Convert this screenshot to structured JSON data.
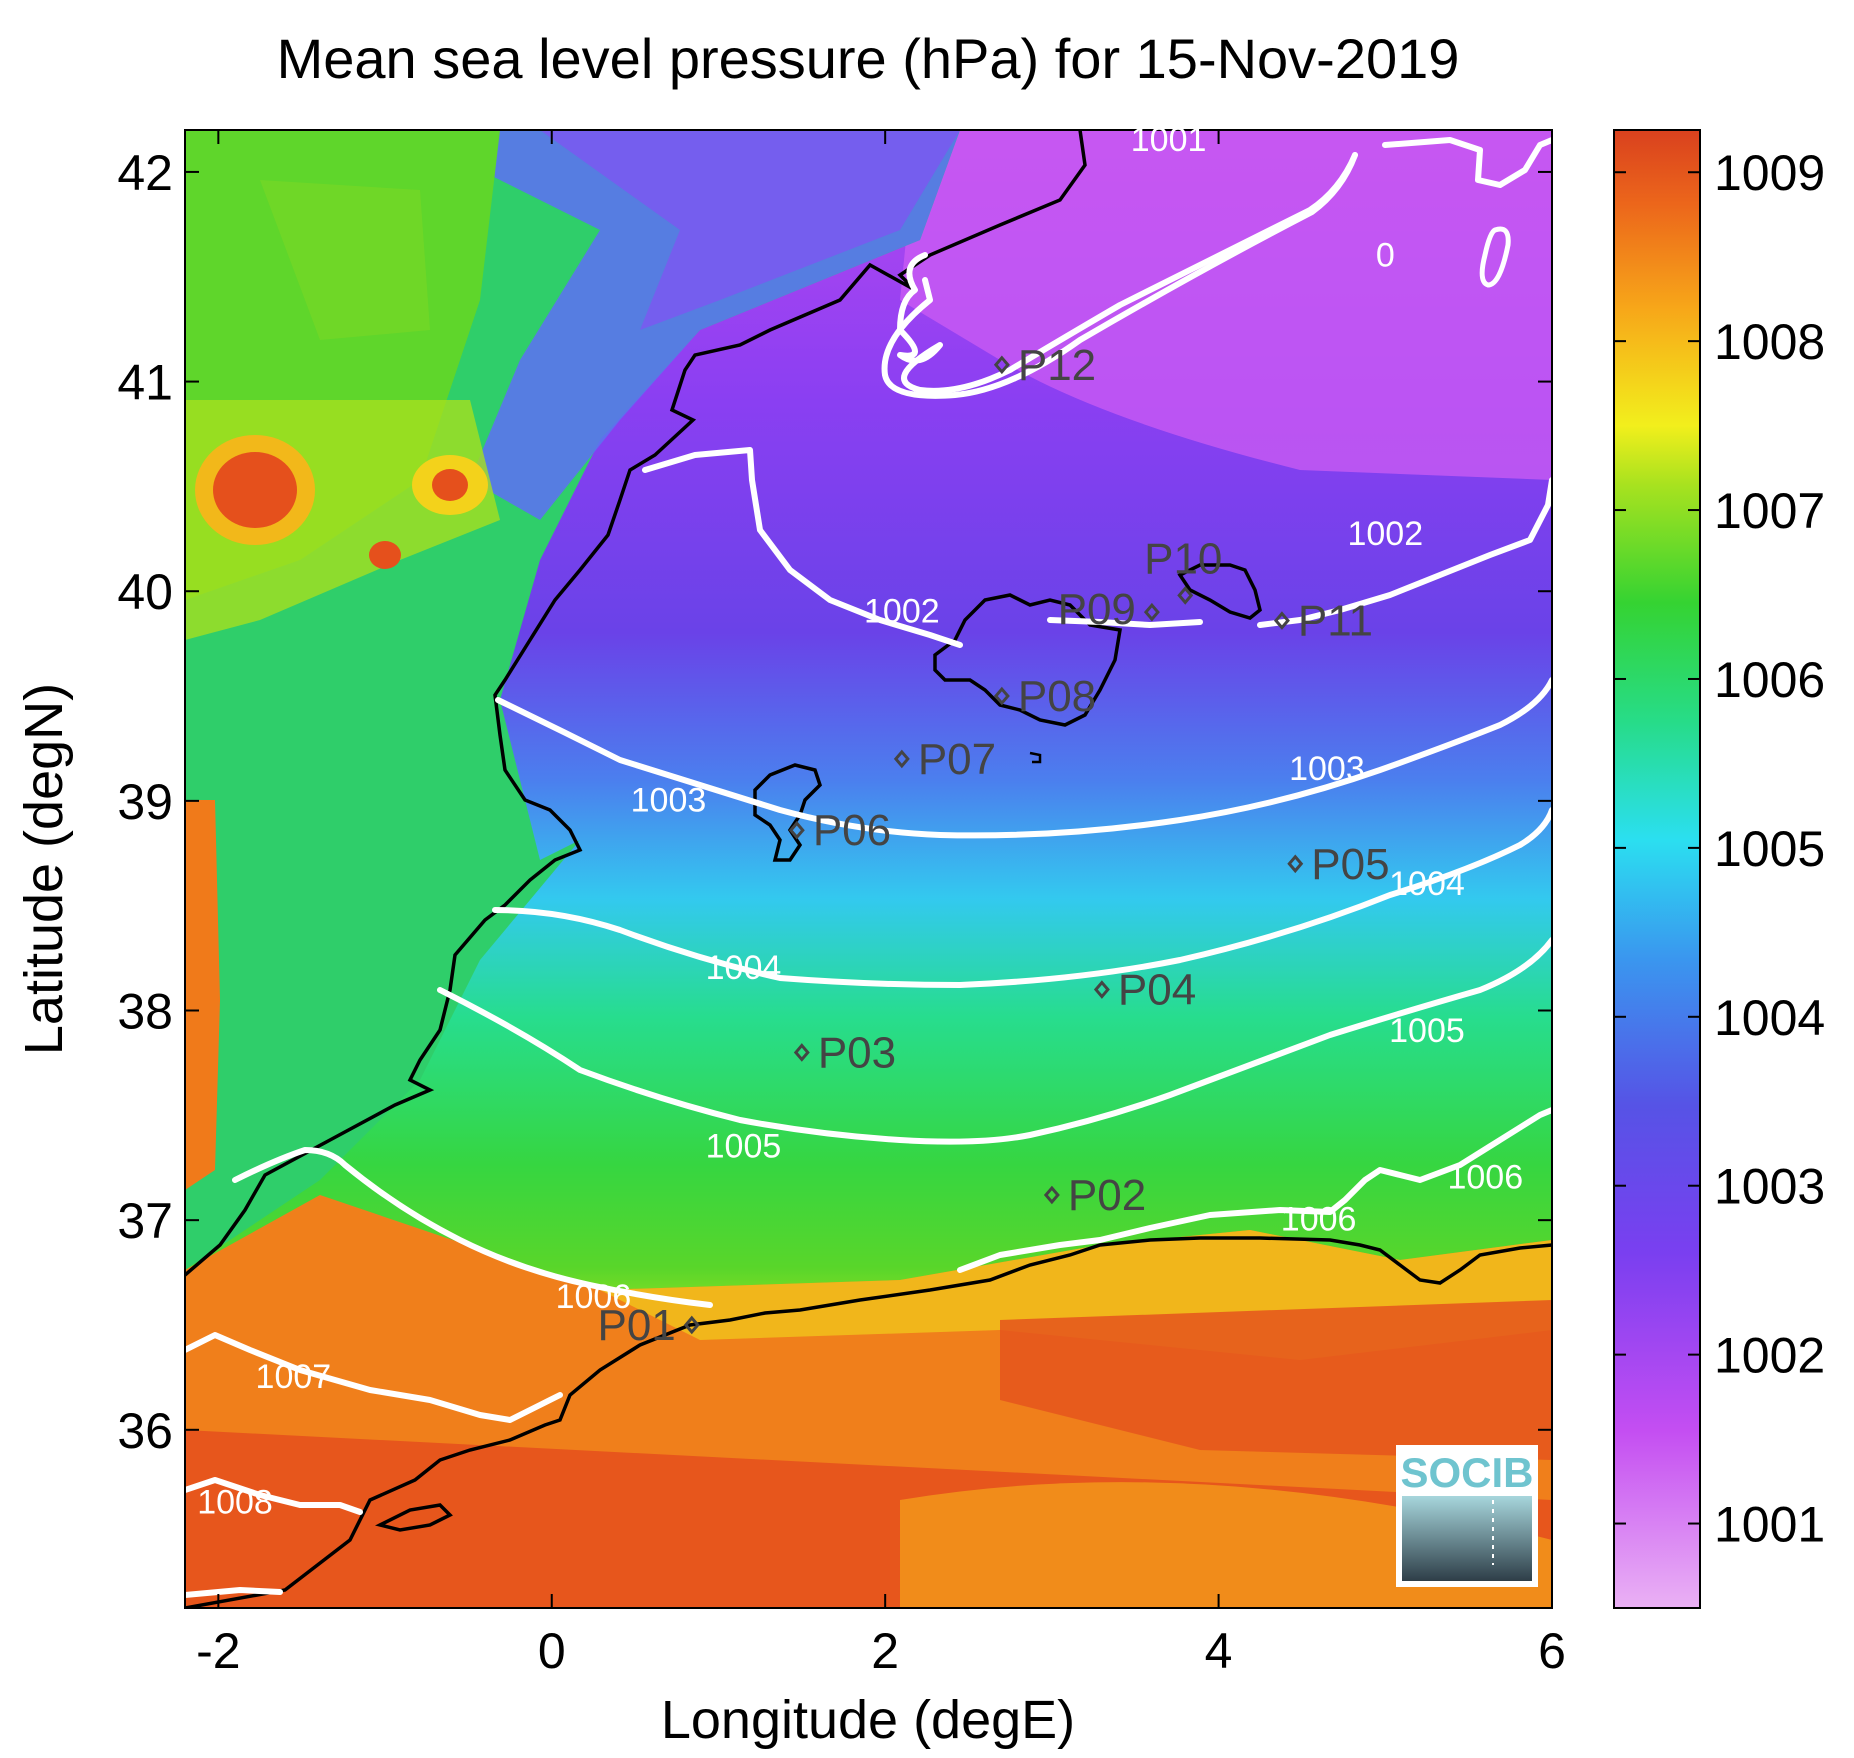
{
  "title": "Mean sea level pressure (hPa) for 15-Nov-2019",
  "xlabel": "Longitude (degE)",
  "ylabel": "Latitude (degN)",
  "xlim": [
    -2.2,
    6.0
  ],
  "ylim": [
    35.15,
    42.2
  ],
  "xticks": [
    {
      "v": -2,
      "label": "-2"
    },
    {
      "v": 0,
      "label": "0"
    },
    {
      "v": 2,
      "label": "2"
    },
    {
      "v": 4,
      "label": "4"
    },
    {
      "v": 6,
      "label": "6"
    }
  ],
  "yticks": [
    {
      "v": 36,
      "label": "36"
    },
    {
      "v": 37,
      "label": "37"
    },
    {
      "v": 38,
      "label": "38"
    },
    {
      "v": 39,
      "label": "39"
    },
    {
      "v": 40,
      "label": "40"
    },
    {
      "v": 41,
      "label": "41"
    },
    {
      "v": 42,
      "label": "42"
    }
  ],
  "colorbar": {
    "range": [
      1000.5,
      1009.25
    ],
    "ticks": [
      {
        "v": 1001,
        "label": "1001"
      },
      {
        "v": 1002,
        "label": "1002"
      },
      {
        "v": 1003,
        "label": "1003"
      },
      {
        "v": 1004,
        "label": "1004"
      },
      {
        "v": 1005,
        "label": "1005"
      },
      {
        "v": 1006,
        "label": "1006"
      },
      {
        "v": 1007,
        "label": "1007"
      },
      {
        "v": 1008,
        "label": "1008"
      },
      {
        "v": 1009,
        "label": "1009"
      }
    ],
    "colors": [
      "#e9a9f3",
      "#b03ef0",
      "#6c3fe6",
      "#3f82ec",
      "#29dcef",
      "#26dd7c",
      "#3ed327",
      "#f1f01c",
      "#f7a719",
      "#e5501c",
      "#d9411e"
    ]
  },
  "contour_labels": [
    {
      "text": "1001",
      "lon": 3.7,
      "lat": 42.1
    },
    {
      "text": "0",
      "lon": 5.0,
      "lat": 41.55
    },
    {
      "text": "1002",
      "lon": 2.1,
      "lat": 39.85
    },
    {
      "text": "1002",
      "lon": 5.0,
      "lat": 40.22
    },
    {
      "text": "1003",
      "lon": 0.7,
      "lat": 38.95
    },
    {
      "text": "1003",
      "lon": 4.65,
      "lat": 39.1
    },
    {
      "text": "1004",
      "lon": 1.15,
      "lat": 38.15
    },
    {
      "text": "1004",
      "lon": 5.25,
      "lat": 38.55
    },
    {
      "text": "1005",
      "lon": 1.15,
      "lat": 37.3
    },
    {
      "text": "1005",
      "lon": 5.25,
      "lat": 37.85
    },
    {
      "text": "1006",
      "lon": 0.25,
      "lat": 36.58
    },
    {
      "text": "1006",
      "lon": 4.6,
      "lat": 36.95
    },
    {
      "text": "1006",
      "lon": 5.6,
      "lat": 37.15
    },
    {
      "text": "1007",
      "lon": -1.55,
      "lat": 36.2
    },
    {
      "text": "1008",
      "lon": -1.9,
      "lat": 35.6
    }
  ],
  "points": [
    {
      "name": "P01",
      "lon": 0.84,
      "lat": 36.5,
      "side": "left"
    },
    {
      "name": "P02",
      "lon": 3.0,
      "lat": 37.12,
      "side": "right"
    },
    {
      "name": "P03",
      "lon": 1.5,
      "lat": 37.8,
      "side": "right"
    },
    {
      "name": "P04",
      "lon": 3.3,
      "lat": 38.1,
      "side": "right"
    },
    {
      "name": "P05",
      "lon": 4.46,
      "lat": 38.7,
      "side": "right"
    },
    {
      "name": "P06",
      "lon": 1.47,
      "lat": 38.86,
      "side": "right"
    },
    {
      "name": "P07",
      "lon": 2.1,
      "lat": 39.2,
      "side": "right"
    },
    {
      "name": "P08",
      "lon": 2.7,
      "lat": 39.5,
      "side": "right"
    },
    {
      "name": "P09",
      "lon": 3.6,
      "lat": 39.9,
      "side": "leftup"
    },
    {
      "name": "P10",
      "lon": 3.8,
      "lat": 39.98,
      "side": "above"
    },
    {
      "name": "P11",
      "lon": 4.38,
      "lat": 39.86,
      "side": "right"
    },
    {
      "name": "P12",
      "lon": 2.7,
      "lat": 41.08,
      "side": "right"
    }
  ],
  "logo": {
    "text": "SOCIB"
  }
}
